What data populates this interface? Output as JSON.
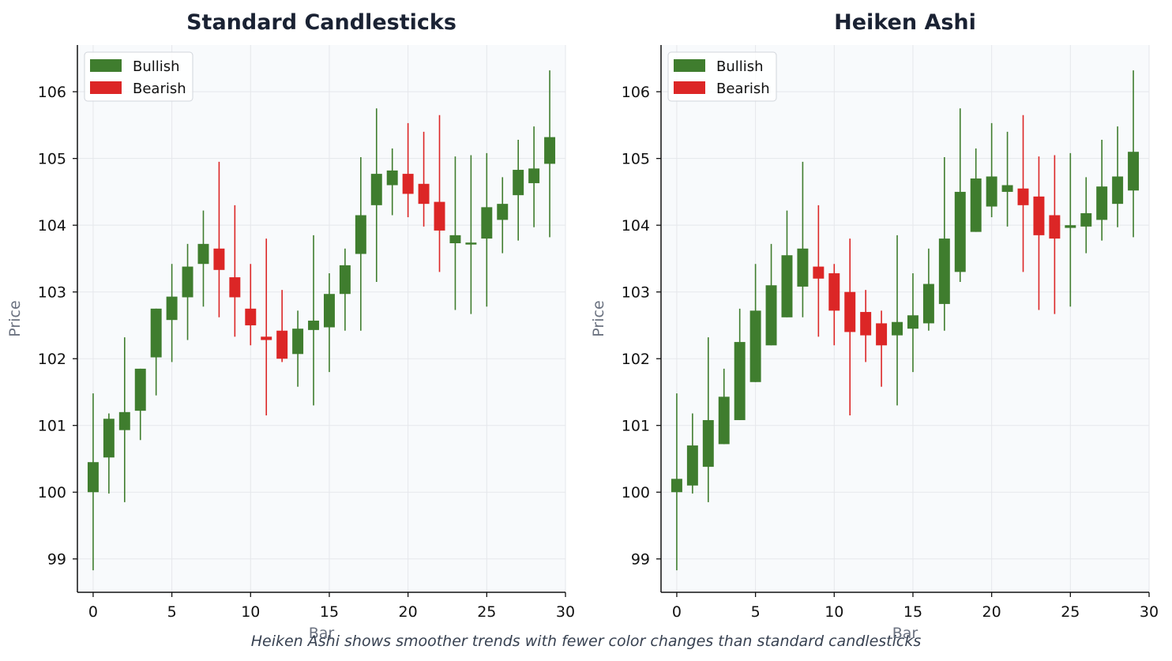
{
  "figure": {
    "caption": "Heiken Ashi shows smoother trends with fewer color changes than standard candlesticks"
  },
  "colors": {
    "bullish": "#3f7d2e",
    "bearish": "#dc2626",
    "plot_background": "#f8fafc",
    "grid": "#e5e7eb"
  },
  "chart_data": [
    {
      "type": "candlestick",
      "title": "Standard Candlesticks",
      "xlabel": "Bar",
      "ylabel": "Price",
      "xlim": [
        -1,
        30
      ],
      "ylim": [
        98.5,
        106.7
      ],
      "xticks": [
        0,
        5,
        10,
        15,
        20,
        25,
        30
      ],
      "yticks": [
        99,
        100,
        101,
        102,
        103,
        104,
        105,
        106
      ],
      "grid": true,
      "legend": {
        "position": "top-left",
        "entries": [
          "Bullish",
          "Bearish"
        ]
      },
      "candles": [
        {
          "x": 0,
          "open": 100.0,
          "high": 101.48,
          "low": 98.83,
          "close": 100.45
        },
        {
          "x": 1,
          "open": 100.52,
          "high": 101.18,
          "low": 99.98,
          "close": 101.1
        },
        {
          "x": 2,
          "open": 100.93,
          "high": 102.32,
          "low": 99.85,
          "close": 101.2
        },
        {
          "x": 3,
          "open": 101.22,
          "high": 101.85,
          "low": 100.78,
          "close": 101.85
        },
        {
          "x": 4,
          "open": 102.02,
          "high": 102.75,
          "low": 101.45,
          "close": 102.75
        },
        {
          "x": 5,
          "open": 102.58,
          "high": 103.42,
          "low": 101.95,
          "close": 102.93
        },
        {
          "x": 6,
          "open": 102.92,
          "high": 103.72,
          "low": 102.28,
          "close": 103.38
        },
        {
          "x": 7,
          "open": 103.42,
          "high": 104.22,
          "low": 102.78,
          "close": 103.72
        },
        {
          "x": 8,
          "open": 103.65,
          "high": 104.95,
          "low": 102.62,
          "close": 103.33
        },
        {
          "x": 9,
          "open": 103.22,
          "high": 104.3,
          "low": 102.33,
          "close": 102.92
        },
        {
          "x": 10,
          "open": 102.75,
          "high": 103.42,
          "low": 102.2,
          "close": 102.5
        },
        {
          "x": 11,
          "open": 102.33,
          "high": 103.8,
          "low": 101.15,
          "close": 102.28
        },
        {
          "x": 12,
          "open": 102.42,
          "high": 103.03,
          "low": 101.95,
          "close": 102.0
        },
        {
          "x": 13,
          "open": 102.07,
          "high": 102.72,
          "low": 101.58,
          "close": 102.45
        },
        {
          "x": 14,
          "open": 102.43,
          "high": 103.85,
          "low": 101.3,
          "close": 102.57
        },
        {
          "x": 15,
          "open": 102.47,
          "high": 103.28,
          "low": 101.8,
          "close": 102.97
        },
        {
          "x": 16,
          "open": 102.97,
          "high": 103.65,
          "low": 102.42,
          "close": 103.4
        },
        {
          "x": 17,
          "open": 103.57,
          "high": 105.02,
          "low": 102.42,
          "close": 104.15
        },
        {
          "x": 18,
          "open": 104.3,
          "high": 105.75,
          "low": 103.15,
          "close": 104.77
        },
        {
          "x": 19,
          "open": 104.6,
          "high": 105.15,
          "low": 104.15,
          "close": 104.82
        },
        {
          "x": 20,
          "open": 104.77,
          "high": 105.53,
          "low": 104.12,
          "close": 104.47
        },
        {
          "x": 21,
          "open": 104.62,
          "high": 105.4,
          "low": 103.98,
          "close": 104.32
        },
        {
          "x": 22,
          "open": 104.35,
          "high": 105.65,
          "low": 103.3,
          "close": 103.92
        },
        {
          "x": 23,
          "open": 103.73,
          "high": 105.03,
          "low": 102.73,
          "close": 103.85
        },
        {
          "x": 24,
          "open": 103.72,
          "high": 105.05,
          "low": 102.67,
          "close": 103.74
        },
        {
          "x": 25,
          "open": 103.8,
          "high": 105.08,
          "low": 102.78,
          "close": 104.27
        },
        {
          "x": 26,
          "open": 104.08,
          "high": 104.72,
          "low": 103.58,
          "close": 104.32
        },
        {
          "x": 27,
          "open": 104.45,
          "high": 105.28,
          "low": 103.77,
          "close": 104.83
        },
        {
          "x": 28,
          "open": 104.63,
          "high": 105.48,
          "low": 103.97,
          "close": 104.85
        },
        {
          "x": 29,
          "open": 104.92,
          "high": 106.32,
          "low": 103.82,
          "close": 105.32
        }
      ]
    },
    {
      "type": "candlestick",
      "title": "Heiken Ashi",
      "xlabel": "Bar",
      "ylabel": "Price",
      "xlim": [
        -1,
        30
      ],
      "ylim": [
        98.5,
        106.7
      ],
      "xticks": [
        0,
        5,
        10,
        15,
        20,
        25,
        30
      ],
      "yticks": [
        99,
        100,
        101,
        102,
        103,
        104,
        105,
        106
      ],
      "grid": true,
      "legend": {
        "position": "top-left",
        "entries": [
          "Bullish",
          "Bearish"
        ]
      },
      "candles": [
        {
          "x": 0,
          "open": 100.0,
          "high": 101.48,
          "low": 98.83,
          "close": 100.2
        },
        {
          "x": 1,
          "open": 100.1,
          "high": 101.18,
          "low": 99.98,
          "close": 100.7
        },
        {
          "x": 2,
          "open": 100.38,
          "high": 102.32,
          "low": 99.85,
          "close": 101.08
        },
        {
          "x": 3,
          "open": 100.72,
          "high": 101.85,
          "low": 100.72,
          "close": 101.43
        },
        {
          "x": 4,
          "open": 101.08,
          "high": 102.75,
          "low": 101.08,
          "close": 102.25
        },
        {
          "x": 5,
          "open": 101.65,
          "high": 103.42,
          "low": 101.65,
          "close": 102.72
        },
        {
          "x": 6,
          "open": 102.2,
          "high": 103.72,
          "low": 102.2,
          "close": 103.1
        },
        {
          "x": 7,
          "open": 102.62,
          "high": 104.22,
          "low": 102.62,
          "close": 103.55
        },
        {
          "x": 8,
          "open": 103.08,
          "high": 104.95,
          "low": 102.62,
          "close": 103.65
        },
        {
          "x": 9,
          "open": 103.38,
          "high": 104.3,
          "low": 102.33,
          "close": 103.2
        },
        {
          "x": 10,
          "open": 103.28,
          "high": 103.42,
          "low": 102.2,
          "close": 102.72
        },
        {
          "x": 11,
          "open": 103.0,
          "high": 103.8,
          "low": 101.15,
          "close": 102.4
        },
        {
          "x": 12,
          "open": 102.7,
          "high": 103.03,
          "low": 101.95,
          "close": 102.35
        },
        {
          "x": 13,
          "open": 102.53,
          "high": 102.72,
          "low": 101.58,
          "close": 102.2
        },
        {
          "x": 14,
          "open": 102.35,
          "high": 103.85,
          "low": 101.3,
          "close": 102.55
        },
        {
          "x": 15,
          "open": 102.45,
          "high": 103.28,
          "low": 101.8,
          "close": 102.65
        },
        {
          "x": 16,
          "open": 102.53,
          "high": 103.65,
          "low": 102.42,
          "close": 103.12
        },
        {
          "x": 17,
          "open": 102.82,
          "high": 105.02,
          "low": 102.42,
          "close": 103.8
        },
        {
          "x": 18,
          "open": 103.3,
          "high": 105.75,
          "low": 103.15,
          "close": 104.5
        },
        {
          "x": 19,
          "open": 103.9,
          "high": 105.15,
          "low": 103.9,
          "close": 104.7
        },
        {
          "x": 20,
          "open": 104.28,
          "high": 105.53,
          "low": 104.12,
          "close": 104.73
        },
        {
          "x": 21,
          "open": 104.5,
          "high": 105.4,
          "low": 103.98,
          "close": 104.6
        },
        {
          "x": 22,
          "open": 104.55,
          "high": 105.65,
          "low": 103.3,
          "close": 104.3
        },
        {
          "x": 23,
          "open": 104.43,
          "high": 105.03,
          "low": 102.73,
          "close": 103.85
        },
        {
          "x": 24,
          "open": 104.15,
          "high": 105.05,
          "low": 102.67,
          "close": 103.8
        },
        {
          "x": 25,
          "open": 103.96,
          "high": 105.08,
          "low": 102.78,
          "close": 104.0
        },
        {
          "x": 26,
          "open": 103.98,
          "high": 104.72,
          "low": 103.58,
          "close": 104.18
        },
        {
          "x": 27,
          "open": 104.08,
          "high": 105.28,
          "low": 103.77,
          "close": 104.58
        },
        {
          "x": 28,
          "open": 104.32,
          "high": 105.48,
          "low": 103.97,
          "close": 104.73
        },
        {
          "x": 29,
          "open": 104.52,
          "high": 106.32,
          "low": 103.82,
          "close": 105.1
        }
      ]
    }
  ]
}
